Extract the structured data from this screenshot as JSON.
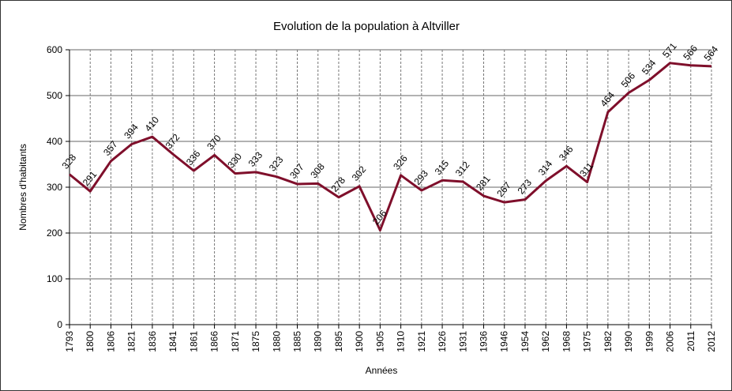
{
  "chart_data": {
    "type": "line",
    "title": "Evolution de la population à Altviller",
    "xlabel": "Années",
    "ylabel": "Nombres d'habitants",
    "ylim": [
      0,
      600
    ],
    "yticks": [
      0,
      100,
      200,
      300,
      400,
      500,
      600
    ],
    "grid": true,
    "color": "#7f0f2b",
    "categories": [
      "1793",
      "1800",
      "1806",
      "1821",
      "1836",
      "1841",
      "1861",
      "1866",
      "1871",
      "1875",
      "1880",
      "1885",
      "1890",
      "1895",
      "1900",
      "1905",
      "1910",
      "1921",
      "1926",
      "1931",
      "1936",
      "1946",
      "1954",
      "1962",
      "1968",
      "1975",
      "1982",
      "1990",
      "1999",
      "2006",
      "2011",
      "2012"
    ],
    "values": [
      328,
      291,
      357,
      394,
      410,
      372,
      336,
      370,
      330,
      333,
      323,
      307,
      308,
      278,
      302,
      206,
      326,
      293,
      315,
      312,
      281,
      267,
      273,
      314,
      346,
      311,
      464,
      506,
      534,
      571,
      566,
      564
    ]
  }
}
